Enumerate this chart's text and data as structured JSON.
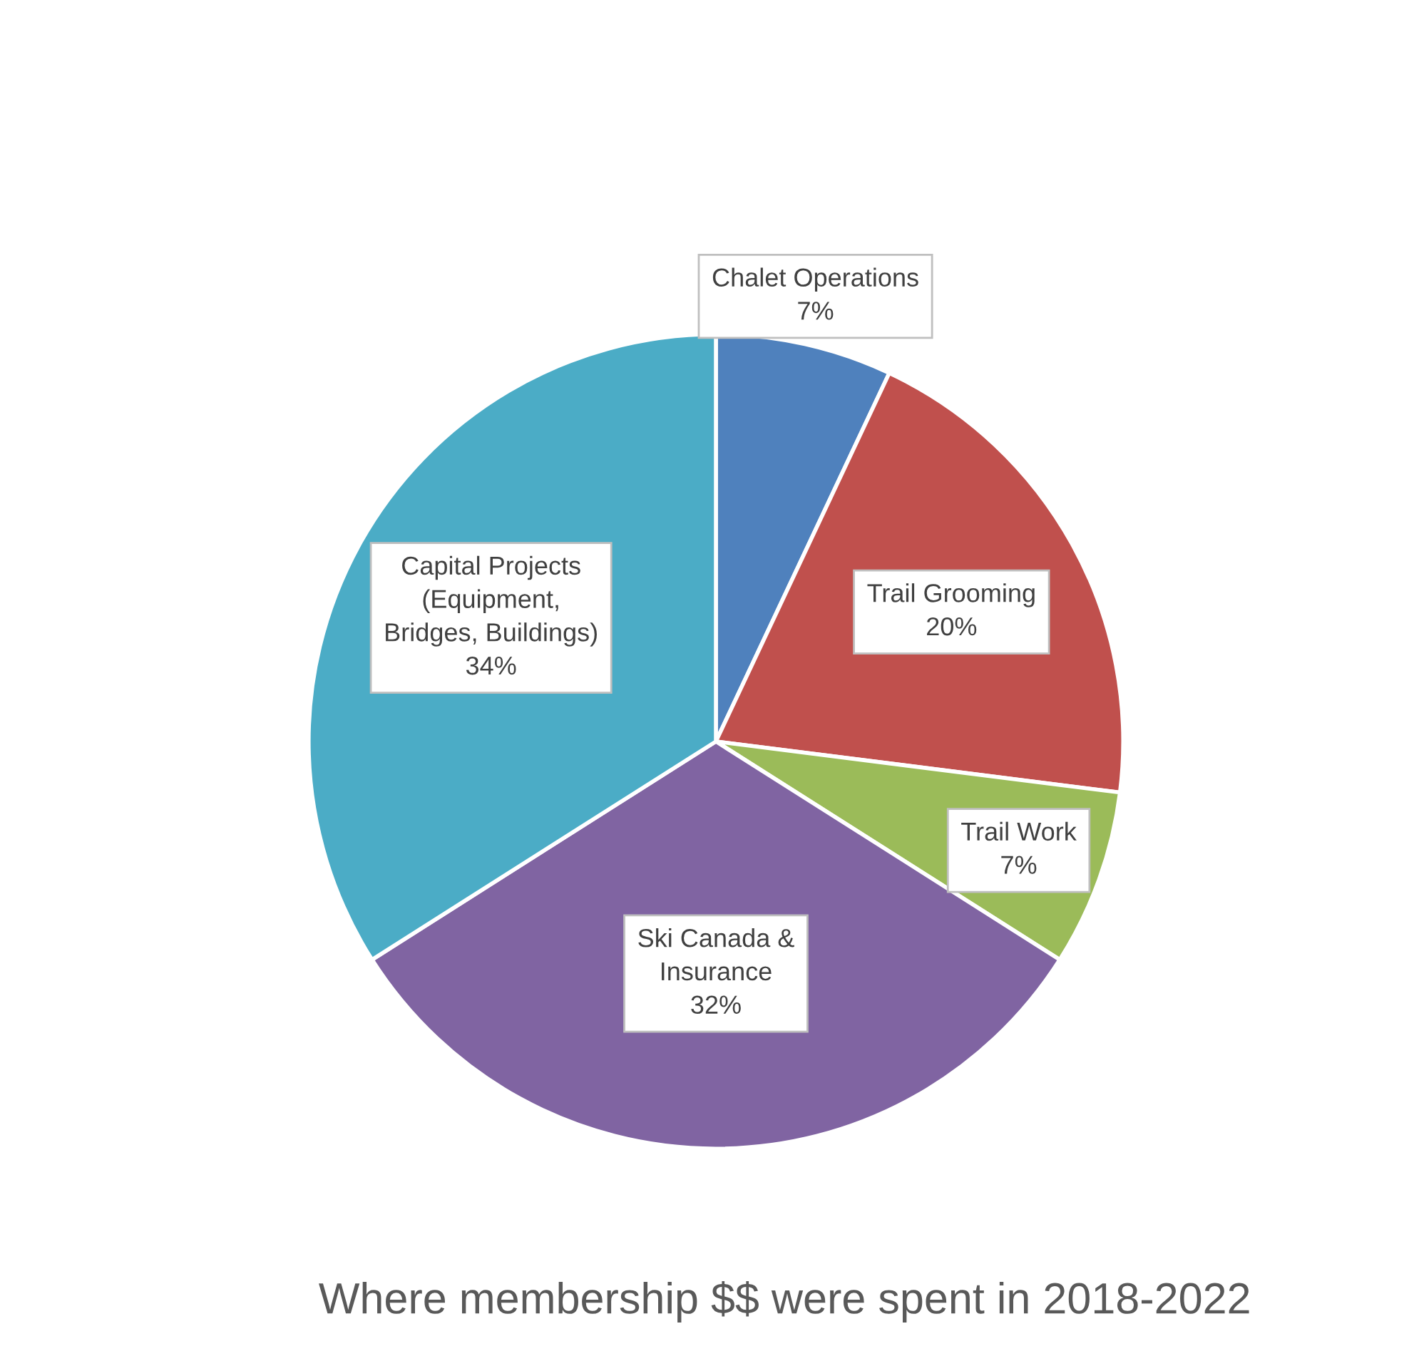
{
  "chart_data": {
    "type": "pie",
    "title": "Where membership $$ were spent in 2018-2022",
    "categories": [
      "Chalet Operations",
      "Trail Grooming",
      "Trail Work",
      "Ski Canada &\nInsurance",
      "Capital Projects\n(Equipment,\nBridges, Buildings)"
    ],
    "values": [
      7,
      20,
      7,
      32,
      34
    ],
    "value_labels": [
      "7%",
      "20%",
      "7%",
      "32%",
      "34%"
    ],
    "colors": [
      "#4f81bd",
      "#c0504d",
      "#9bbb59",
      "#8064a2",
      "#4bacc6"
    ],
    "legend": false
  }
}
